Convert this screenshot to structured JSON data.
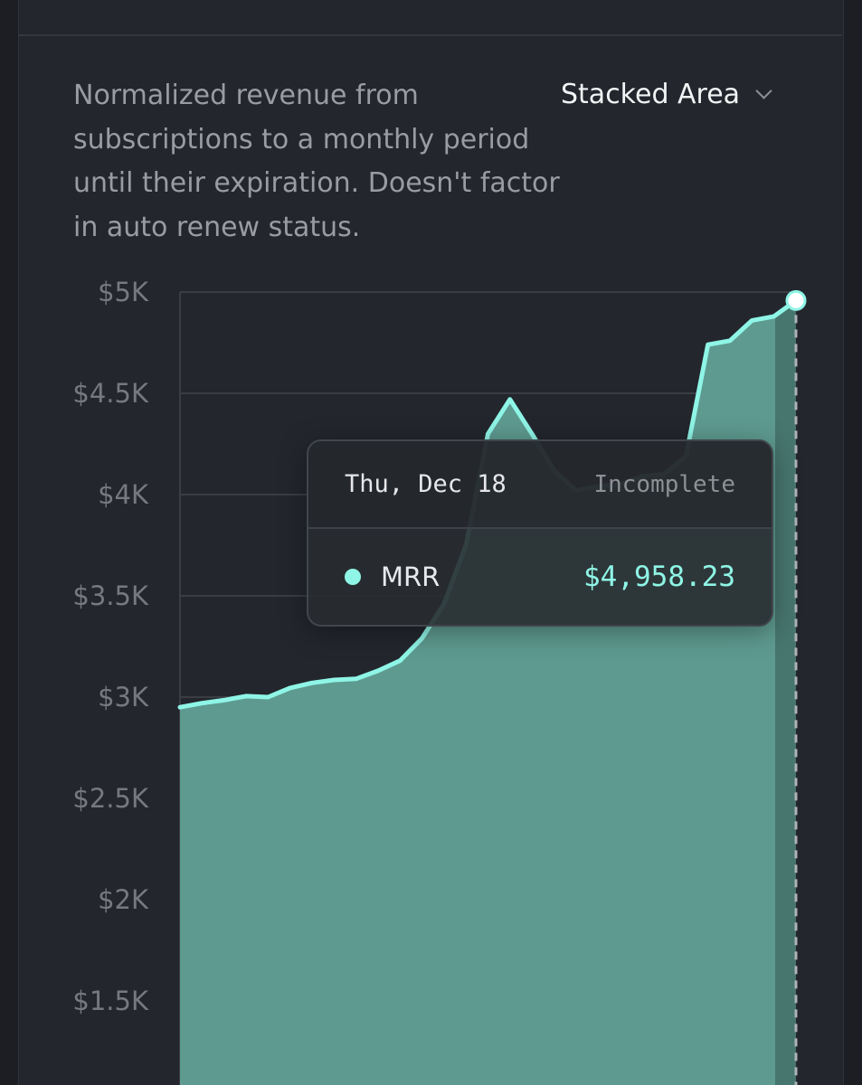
{
  "description": "Normalized revenue from subscriptions to a monthly period until their expiration. Doesn't factor in auto renew status.",
  "view_selector": {
    "label": "Stacked Area",
    "icon": "chevron-down-icon"
  },
  "colors": {
    "line": "#8ff5e6",
    "area": "#5e9a90",
    "area_incomplete": "#47766e",
    "grid": "#3a3d43",
    "background": "#23262d"
  },
  "tooltip": {
    "date": "Thu, Dec 18",
    "status": "Incomplete",
    "series_name": "MRR",
    "value": "$4,958.23"
  },
  "chart_data": {
    "type": "area",
    "stacked": true,
    "y_ticks": [
      "$5K",
      "$4.5K",
      "$4K",
      "$3.5K",
      "$3K",
      "$2.5K",
      "$2K",
      "$1.5K"
    ],
    "y_tick_values": [
      5000,
      4500,
      4000,
      3500,
      3000,
      2500,
      2000,
      1500
    ],
    "ylim": [
      1500,
      5000
    ],
    "grid": true,
    "incomplete_last_point": true,
    "series": [
      {
        "name": "MRR",
        "values": [
          2950,
          2970,
          2985,
          3005,
          3000,
          3045,
          3070,
          3085,
          3090,
          3130,
          3180,
          3290,
          3460,
          3750,
          4300,
          4470,
          4300,
          4120,
          4020,
          4040,
          4050,
          4090,
          4100,
          4190,
          4740,
          4760,
          4860,
          4880,
          4958.23
        ]
      }
    ]
  }
}
